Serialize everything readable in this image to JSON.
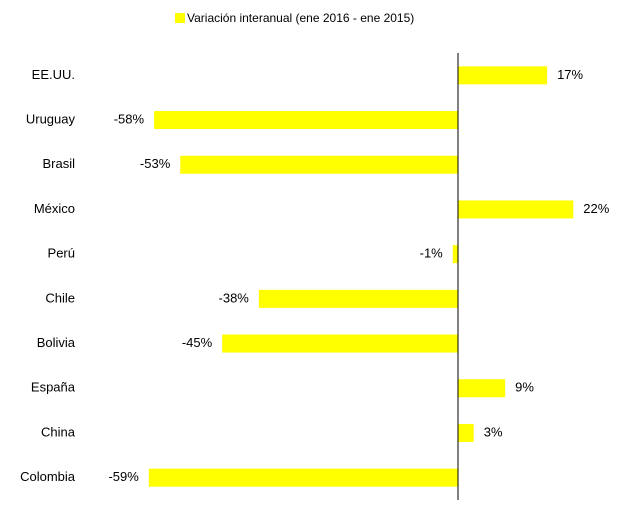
{
  "chart_data": {
    "type": "hbar",
    "categories": [
      "EE.UU.",
      "Uruguay",
      "Brasil",
      "México",
      "Perú",
      "Chile",
      "Bolivia",
      "España",
      "China",
      "Colombia"
    ],
    "series": [
      {
        "name": "Variación interanual (ene 2016 - ene 2015)",
        "color": "#ffff00",
        "values": [
          17,
          -58,
          -53,
          22,
          -1,
          -38,
          -45,
          9,
          3,
          -59
        ],
        "value_labels": [
          "17%",
          "-58%",
          "-53%",
          "22%",
          "-1%",
          "-38%",
          "-45%",
          "9%",
          "3%",
          "-59%"
        ]
      }
    ],
    "xlim": [
      -60,
      30
    ],
    "legend": "top"
  }
}
